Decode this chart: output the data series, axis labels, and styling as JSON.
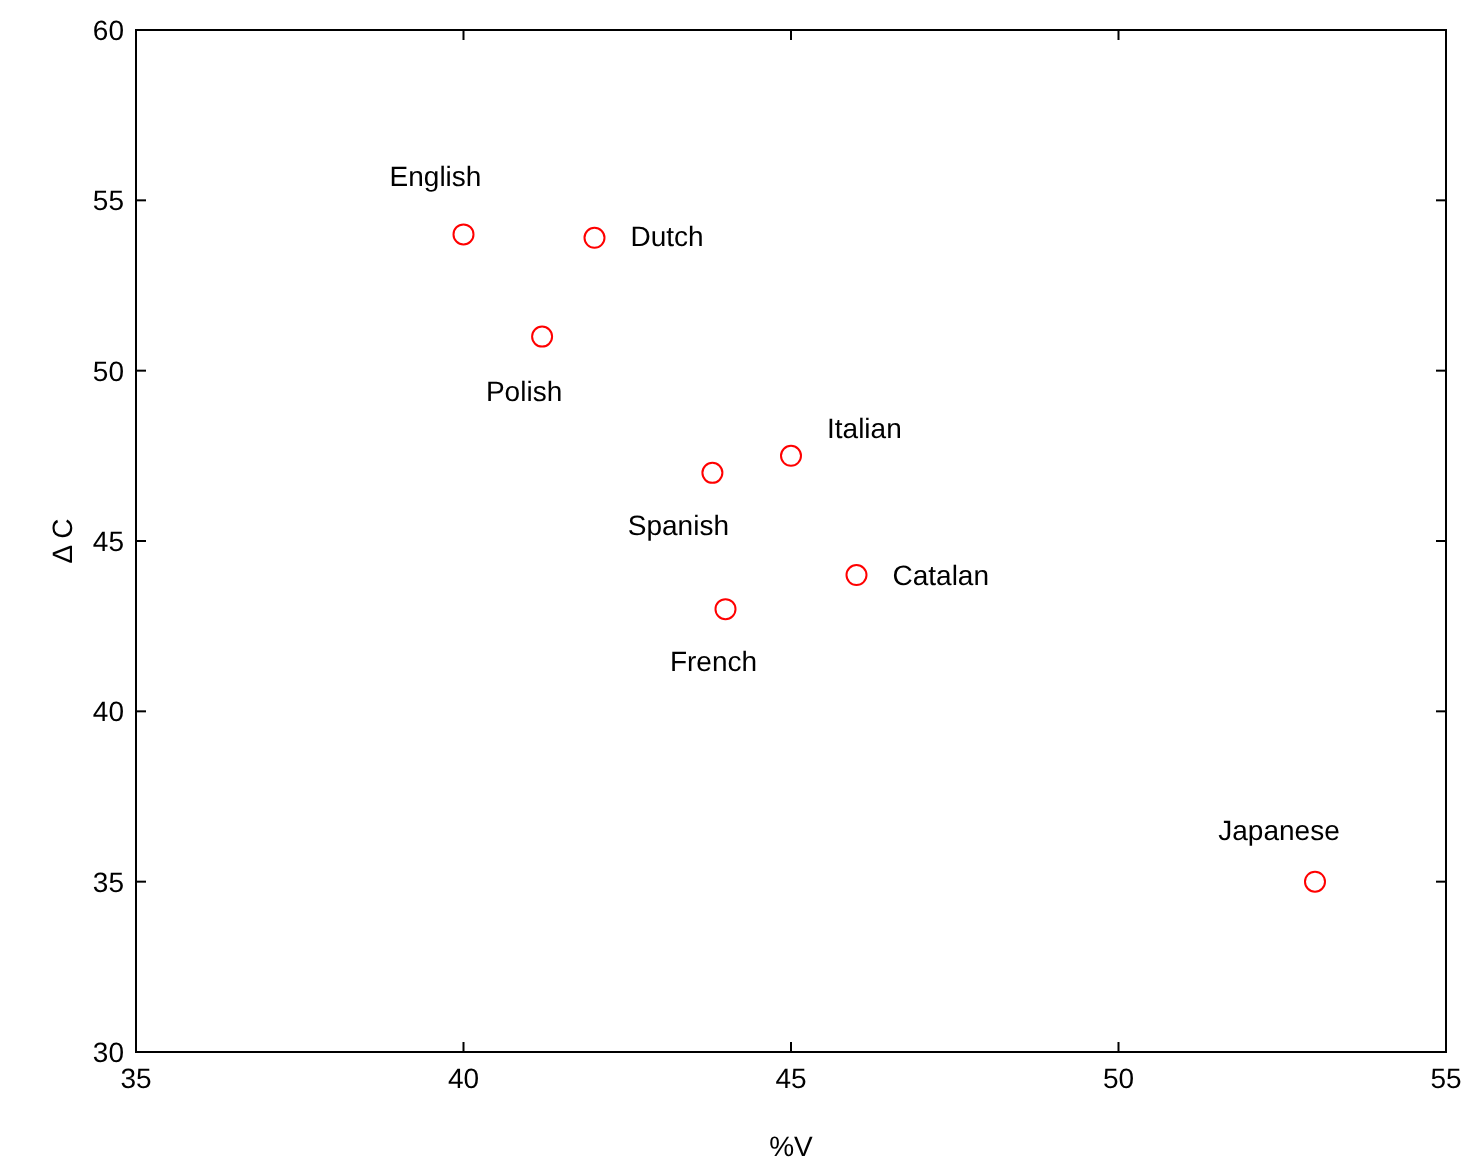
{
  "chart_data": {
    "type": "scatter",
    "xlabel": "%V",
    "ylabel": "Δ C",
    "xlim": [
      35,
      55
    ],
    "xticks": [
      35,
      40,
      45,
      50,
      55
    ],
    "ylim": [
      30,
      60
    ],
    "yticks": [
      30,
      35,
      40,
      45,
      50,
      55,
      60
    ],
    "marker": "circle",
    "series": [
      {
        "color": "#ff0000",
        "x": [
          40,
          42,
          41.2,
          43.8,
          45,
          46,
          44,
          53
        ],
        "values": [
          54,
          53.9,
          51,
          47,
          47.5,
          44,
          43,
          35
        ]
      }
    ],
    "annotations": [
      {
        "text": "English",
        "x": 40,
        "y": 54
      },
      {
        "text": "Dutch",
        "x": 42,
        "y": 53.9
      },
      {
        "text": "Polish",
        "x": 41.2,
        "y": 51
      },
      {
        "text": "Spanish",
        "x": 43.8,
        "y": 47
      },
      {
        "text": "Italian",
        "x": 45,
        "y": 47.5
      },
      {
        "text": "Catalan",
        "x": 46,
        "y": 44
      },
      {
        "text": "French",
        "x": 44,
        "y": 43
      },
      {
        "text": "Japanese",
        "x": 53,
        "y": 35
      }
    ]
  }
}
